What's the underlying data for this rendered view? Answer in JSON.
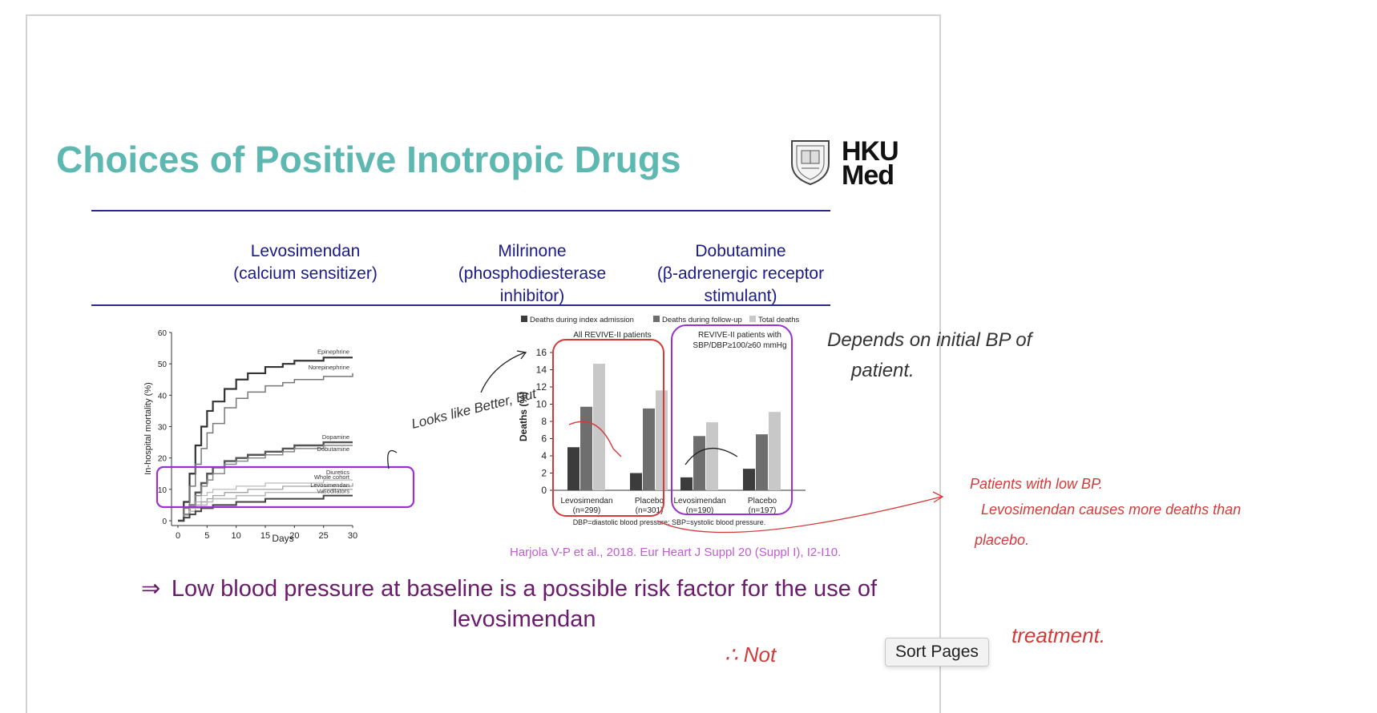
{
  "slide": {
    "title": "Choices of Positive Inotropic Drugs",
    "logo_text_line1": "HKU",
    "logo_text_line2": "Med",
    "columns": [
      {
        "name": "Levosimendan",
        "desc": "(calcium sensitizer)"
      },
      {
        "name": "Milrinone",
        "desc": "(phosphodiesterase inhibitor)"
      },
      {
        "name": "Dobutamine",
        "desc": "(β-adrenergic receptor stimulant)"
      }
    ],
    "reference": "Harjola V-P et al., 2018. Eur Heart J Suppl 20 (Suppl I), I2-I10.",
    "conclusion_arrow": "⇒",
    "conclusion": "Low blood pressure at baseline is a possible risk factor for the use of levosimendan"
  },
  "chart_data": [
    {
      "type": "line",
      "xlabel": "Days",
      "ylabel": "In-hospital mortality (%)",
      "xlim": [
        0,
        30
      ],
      "ylim": [
        0,
        60
      ],
      "xticks": [
        0,
        5,
        10,
        15,
        20,
        25,
        30
      ],
      "yticks": [
        0,
        10,
        20,
        30,
        40,
        50,
        60
      ],
      "x": [
        0,
        1,
        2,
        3,
        4,
        5,
        6,
        8,
        10,
        12,
        15,
        18,
        20,
        25,
        30
      ],
      "series": [
        {
          "name": "Epinephrine",
          "values": [
            0,
            6,
            15,
            24,
            30,
            35,
            38,
            42,
            45,
            47,
            49,
            50,
            51,
            52,
            52
          ]
        },
        {
          "name": "Norepinephrine",
          "values": [
            0,
            4,
            11,
            18,
            23,
            28,
            31,
            36,
            39,
            41,
            43,
            44,
            45,
            46,
            47
          ]
        },
        {
          "name": "Dopamine",
          "values": [
            0,
            2,
            5,
            9,
            12,
            15,
            17,
            19,
            20,
            21,
            22,
            23,
            24,
            25,
            25
          ]
        },
        {
          "name": "Dobutamine",
          "values": [
            0,
            2,
            5,
            8,
            11,
            13,
            15,
            18,
            19,
            20,
            21,
            22,
            23,
            24,
            24
          ]
        },
        {
          "name": "Diuretics",
          "values": [
            0,
            2,
            4,
            6,
            8,
            9,
            10,
            10,
            11,
            11,
            12,
            12,
            12,
            13,
            13
          ]
        },
        {
          "name": "Whole cohort",
          "values": [
            0,
            2,
            3,
            5,
            6,
            7,
            8,
            9,
            9,
            10,
            10,
            11,
            11,
            11,
            12
          ]
        },
        {
          "name": "Levosimendan",
          "values": [
            0,
            1,
            3,
            4,
            5,
            6,
            7,
            7,
            8,
            8,
            9,
            9,
            9,
            10,
            10
          ]
        },
        {
          "name": "Vasodilators",
          "values": [
            0,
            1,
            2,
            3,
            4,
            4,
            5,
            5,
            6,
            6,
            7,
            7,
            7,
            8,
            8
          ]
        }
      ]
    },
    {
      "type": "bar",
      "ylabel": "Deaths (%)",
      "ylim": [
        0,
        16
      ],
      "yticks": [
        0,
        2,
        4,
        6,
        8,
        10,
        12,
        14,
        16
      ],
      "legend": [
        "Deaths during index admission",
        "Deaths during follow-up",
        "Total deaths"
      ],
      "panels": [
        "All REVIVE-II patients",
        "REVIVE-II patients with SBP/DBP≥100/≥60 mmHg"
      ],
      "categories": [
        "Levosimendan",
        "(n=299)",
        "Placebo",
        "(n=301)",
        "Levosimendan",
        "(n=190)",
        "Placebo",
        "(n=197)"
      ],
      "groups": [
        {
          "label": "Levosimendan",
          "n": "(n=299)",
          "values": [
            5.0,
            9.7,
            14.7
          ]
        },
        {
          "label": "Placebo",
          "n": "(n=301)",
          "values": [
            2.0,
            9.5,
            11.6
          ]
        },
        {
          "label": "Levosimendan",
          "n": "(n=190)",
          "values": [
            1.5,
            6.3,
            7.9
          ]
        },
        {
          "label": "Placebo",
          "n": "(n=197)",
          "values": [
            2.5,
            6.5,
            9.1
          ]
        }
      ],
      "colors": [
        "#3c3c3c",
        "#6e6e6e",
        "#c8c8c8"
      ],
      "footnote": "DBP=diastolic blood pressure; SBP=systolic blood pressure."
    }
  ],
  "annotations": {
    "note1_line1": "Depends on initial BP of",
    "note1_line2": "patient.",
    "note2": "Looks like Better, But",
    "note3_line1": "Patients with low BP.",
    "note3_line2": "Levosimendan causes more deaths than",
    "note3_line3": "placebo.",
    "note4": "∴ Not",
    "note5": "treatment."
  },
  "tooltip": "Sort Pages",
  "colors": {
    "title": "#5cb8b0",
    "header": "#1a1a8a",
    "conclusion": "#6b1a6e",
    "ink_red": "#d23a3a",
    "highlight_purple": "#9b2fd0"
  }
}
